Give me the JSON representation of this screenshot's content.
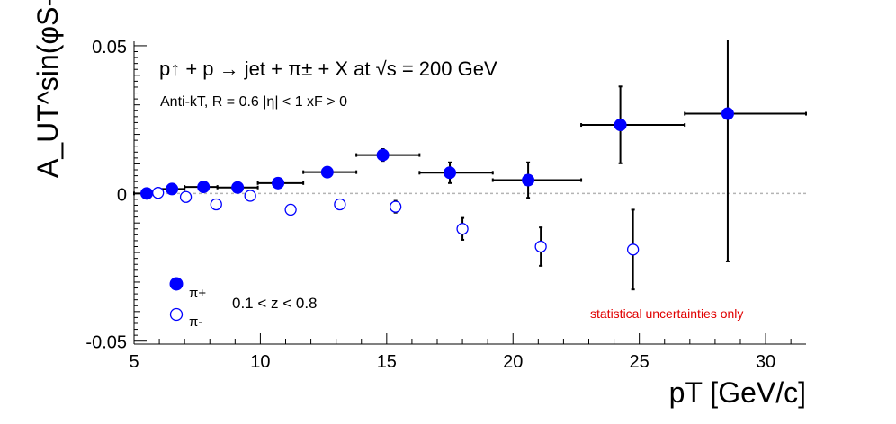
{
  "chart_data": {
    "type": "scatter",
    "title": "p↑ + p → jet + π± + X at √s = 200 GeV",
    "subtitle": "Anti-kT, R = 0.6   |η| < 1   xF > 0",
    "xlabel": "pT [GeV/c]",
    "ylabel": "A_UT^sin(φS-φh)",
    "xlim": [
      5,
      31.6
    ],
    "ylim": [
      -0.051,
      0.0515
    ],
    "x_ticks": [
      "5",
      "10",
      "15",
      "20",
      "25",
      "30"
    ],
    "y_ticks": [
      "0.05",
      "0",
      "-0.05"
    ],
    "zero_line": true,
    "legend_position": "bottom-left",
    "legend_note": "0.1 < z < 0.8",
    "annotation": "statistical uncertainties only",
    "annotation_color": "#e00000",
    "series": [
      {
        "name": "π+",
        "marker": "filled-circle",
        "color": "#0000ff",
        "points": [
          {
            "x": 5.5,
            "y": 0.0,
            "xlo": 5.0,
            "xhi": 6.0,
            "err": 0.0005
          },
          {
            "x": 6.5,
            "y": 0.0015,
            "xlo": 6.0,
            "xhi": 7.0,
            "err": 0.0006
          },
          {
            "x": 7.75,
            "y": 0.0022,
            "xlo": 7.0,
            "xhi": 8.3,
            "err": 0.0007
          },
          {
            "x": 9.1,
            "y": 0.002,
            "xlo": 8.3,
            "xhi": 9.9,
            "err": 0.0008
          },
          {
            "x": 10.7,
            "y": 0.0035,
            "xlo": 9.9,
            "xhi": 11.7,
            "err": 0.0009
          },
          {
            "x": 12.65,
            "y": 0.0072,
            "xlo": 11.7,
            "xhi": 13.8,
            "err": 0.0012
          },
          {
            "x": 14.85,
            "y": 0.013,
            "xlo": 13.8,
            "xhi": 16.3,
            "err": 0.002
          },
          {
            "x": 17.5,
            "y": 0.007,
            "xlo": 16.3,
            "xhi": 19.2,
            "err": 0.0035
          },
          {
            "x": 20.6,
            "y": 0.0045,
            "xlo": 19.2,
            "xhi": 22.7,
            "err": 0.006
          },
          {
            "x": 24.25,
            "y": 0.0232,
            "xlo": 22.7,
            "xhi": 26.8,
            "err": 0.013
          },
          {
            "x": 28.5,
            "y": 0.027,
            "xlo": 26.8,
            "xhi": 31.6,
            "err": 0.05
          }
        ]
      },
      {
        "name": "π-",
        "marker": "open-circle",
        "color": "#0000ff",
        "points": [
          {
            "x": 5.95,
            "y": 0.0002,
            "err": 0.0005
          },
          {
            "x": 7.05,
            "y": -0.0012,
            "err": 0.0006
          },
          {
            "x": 8.25,
            "y": -0.0037,
            "err": 0.0007
          },
          {
            "x": 9.6,
            "y": -0.0008,
            "err": 0.0008
          },
          {
            "x": 11.2,
            "y": -0.0055,
            "err": 0.001
          },
          {
            "x": 13.15,
            "y": -0.0037,
            "err": 0.0013
          },
          {
            "x": 15.35,
            "y": -0.0045,
            "err": 0.002
          },
          {
            "x": 18.0,
            "y": -0.012,
            "err": 0.0037
          },
          {
            "x": 21.1,
            "y": -0.018,
            "err": 0.0065
          },
          {
            "x": 24.75,
            "y": -0.019,
            "err": 0.0135
          }
        ]
      }
    ]
  }
}
